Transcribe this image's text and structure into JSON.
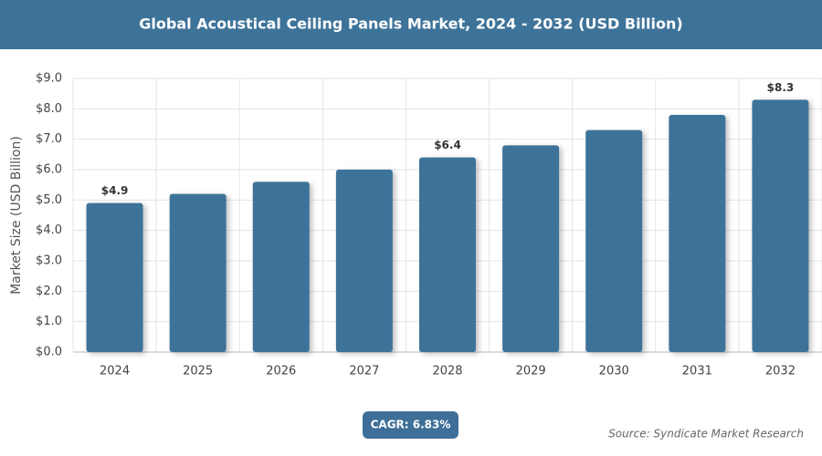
{
  "chart_data": {
    "type": "bar",
    "title": "Global Acoustical Ceiling Panels Market, 2024 - 2032 (USD Billion)",
    "ylabel": "Market Size (USD Billion)",
    "categories": [
      "2024",
      "2025",
      "2026",
      "2027",
      "2028",
      "2029",
      "2030",
      "2031",
      "2032"
    ],
    "values": [
      4.9,
      5.2,
      5.6,
      6.0,
      6.4,
      6.8,
      7.3,
      7.8,
      8.3
    ],
    "value_labels": [
      "$4.9",
      null,
      null,
      null,
      "$6.4",
      null,
      null,
      null,
      "$8.3"
    ],
    "color": "#3e7399",
    "ylim": [
      0,
      9
    ],
    "yticks": [
      {
        "value": 0,
        "label": "$0.0"
      },
      {
        "value": 1,
        "label": "$1.0"
      },
      {
        "value": 2,
        "label": "$2.0"
      },
      {
        "value": 3,
        "label": "$3.0"
      },
      {
        "value": 4,
        "label": "$4.0"
      },
      {
        "value": 5,
        "label": "$5.0"
      },
      {
        "value": 6,
        "label": "$6.0"
      },
      {
        "value": 7,
        "label": "$7.0"
      },
      {
        "value": 8,
        "label": "$8.0"
      },
      {
        "value": 9,
        "label": "$9.0"
      }
    ],
    "grid": true,
    "annotations": [
      "CAGR: 6.83%",
      "Source: Syndicate Market Research"
    ]
  }
}
